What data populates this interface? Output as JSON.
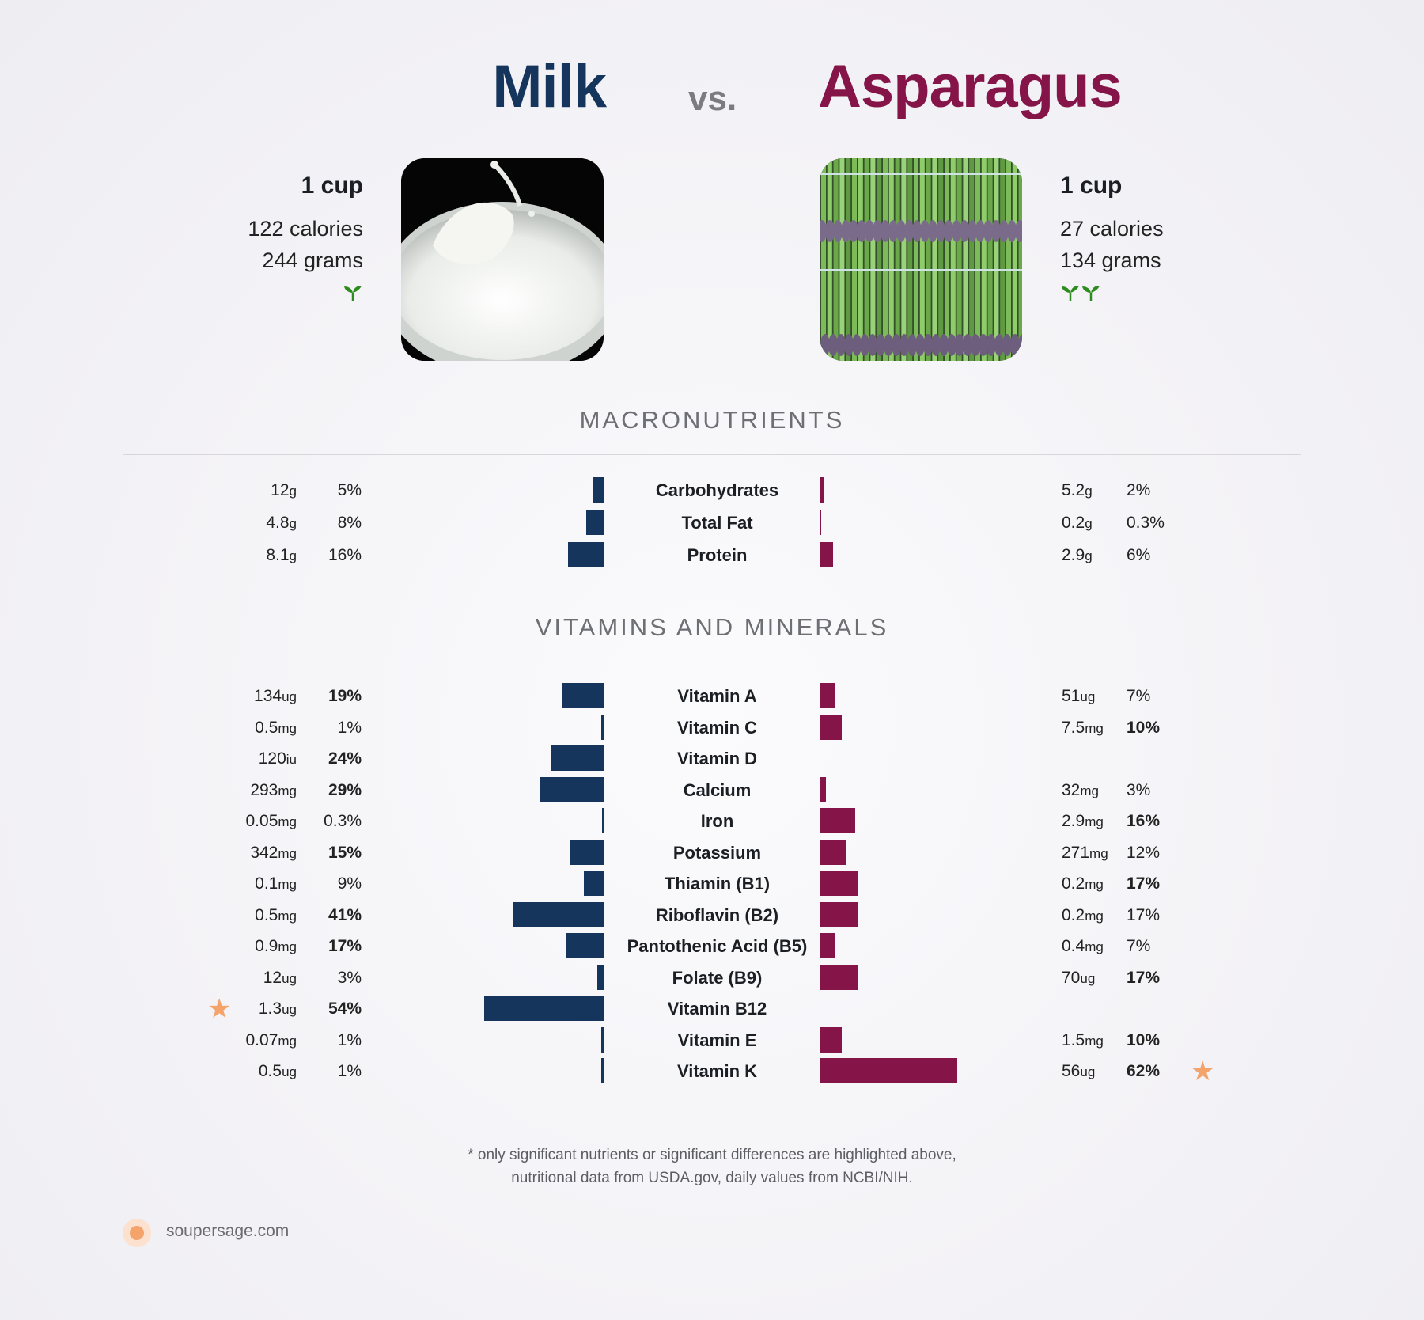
{
  "header": {
    "left_title": "Milk",
    "vs": "vs.",
    "right_title": "Asparagus"
  },
  "foods": {
    "left": {
      "serving": "1 cup",
      "calories": "122 calories",
      "grams": "244 grams",
      "sprouts": 1,
      "color": "#16355c"
    },
    "right": {
      "serving": "1 cup",
      "calories": "27 calories",
      "grams": "134 grams",
      "sprouts": 2,
      "color": "#851548"
    }
  },
  "sections": {
    "macros_title": "MACRONUTRIENTS",
    "vitamins_title": "VITAMINS AND MINERALS"
  },
  "chart_data": [
    {
      "type": "bar",
      "title": "MACRONUTRIENTS",
      "categories": [
        "Carbohydrates",
        "Total Fat",
        "Protein"
      ],
      "series": [
        {
          "name": "Milk",
          "amounts": [
            [
              "12",
              "g"
            ],
            [
              "4.8",
              "g"
            ],
            [
              "8.1",
              "g"
            ]
          ],
          "percents": [
            "5%",
            "8%",
            "16%"
          ],
          "values": [
            5,
            8,
            16
          ]
        },
        {
          "name": "Asparagus",
          "amounts": [
            [
              "5.2",
              "g"
            ],
            [
              "0.2",
              "g"
            ],
            [
              "2.9",
              "g"
            ]
          ],
          "percents": [
            "2%",
            "0.3%",
            "6%"
          ],
          "values": [
            2,
            0.3,
            6
          ]
        }
      ],
      "highlight": {
        "left": [
          false,
          false,
          false
        ],
        "right": [
          false,
          false,
          false
        ]
      }
    },
    {
      "type": "bar",
      "title": "VITAMINS AND MINERALS",
      "categories": [
        "Vitamin A",
        "Vitamin C",
        "Vitamin D",
        "Calcium",
        "Iron",
        "Potassium",
        "Thiamin (B1)",
        "Riboflavin (B2)",
        "Pantothenic Acid (B5)",
        "Folate (B9)",
        "Vitamin B12",
        "Vitamin E",
        "Vitamin K"
      ],
      "series": [
        {
          "name": "Milk",
          "amounts": [
            [
              "134",
              "ug"
            ],
            [
              "0.5",
              "mg"
            ],
            [
              "120",
              "iu"
            ],
            [
              "293",
              "mg"
            ],
            [
              "0.05",
              "mg"
            ],
            [
              "342",
              "mg"
            ],
            [
              "0.1",
              "mg"
            ],
            [
              "0.5",
              "mg"
            ],
            [
              "0.9",
              "mg"
            ],
            [
              "12",
              "ug"
            ],
            [
              "1.3",
              "ug"
            ],
            [
              "0.07",
              "mg"
            ],
            [
              "0.5",
              "ug"
            ]
          ],
          "percents": [
            "19%",
            "1%",
            "24%",
            "29%",
            "0.3%",
            "15%",
            "9%",
            "41%",
            "17%",
            "3%",
            "54%",
            "1%",
            "1%"
          ],
          "values": [
            19,
            1,
            24,
            29,
            0.3,
            15,
            9,
            41,
            17,
            3,
            54,
            1,
            1
          ]
        },
        {
          "name": "Asparagus",
          "amounts": [
            [
              "51",
              "ug"
            ],
            [
              "7.5",
              "mg"
            ],
            null,
            [
              "32",
              "mg"
            ],
            [
              "2.9",
              "mg"
            ],
            [
              "271",
              "mg"
            ],
            [
              "0.2",
              "mg"
            ],
            [
              "0.2",
              "mg"
            ],
            [
              "0.4",
              "mg"
            ],
            [
              "70",
              "ug"
            ],
            null,
            [
              "1.5",
              "mg"
            ],
            [
              "56",
              "ug"
            ]
          ],
          "percents": [
            "7%",
            "10%",
            null,
            "3%",
            "16%",
            "12%",
            "17%",
            "17%",
            "7%",
            "17%",
            null,
            "10%",
            "62%"
          ],
          "values": [
            7,
            10,
            null,
            3,
            16,
            12,
            17,
            17,
            7,
            17,
            null,
            10,
            62
          ]
        }
      ],
      "highlight": {
        "left": [
          true,
          false,
          true,
          true,
          false,
          true,
          false,
          true,
          true,
          false,
          true,
          false,
          false
        ],
        "right": [
          false,
          true,
          false,
          false,
          true,
          false,
          true,
          false,
          false,
          true,
          false,
          true,
          true
        ]
      },
      "stars": {
        "left": [
          10
        ],
        "right": [
          12
        ]
      }
    }
  ],
  "footnote": {
    "line1": "* only significant nutrients or significant differences are highlighted above,",
    "line2": "nutritional data from USDA.gov, daily values from NCBI/NIH."
  },
  "brand": {
    "name": "soupersage.com"
  }
}
